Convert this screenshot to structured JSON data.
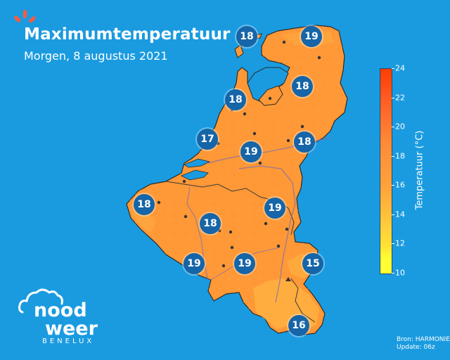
{
  "header": {
    "title": "Maximumtemperatuur",
    "subtitle": "Morgen, 8 augustus 2021"
  },
  "legend": {
    "label": "Temperatuur (°C)",
    "ticks": [
      "10",
      "12",
      "14",
      "16",
      "18",
      "20",
      "22",
      "24"
    ]
  },
  "source": {
    "line1": "Bron: HARMONIE",
    "line2": "Update: 06z"
  },
  "logo": {
    "line1": "nood",
    "line2": "weer",
    "tagline": "BENELUX"
  },
  "markers": [
    {
      "value": "18",
      "loc": "texel"
    },
    {
      "value": "19",
      "loc": "groningen"
    },
    {
      "value": "18",
      "loc": "ijsselmeer-ne"
    },
    {
      "value": "18",
      "loc": "noord-holland"
    },
    {
      "value": "17",
      "loc": "zeeland-north"
    },
    {
      "value": "19",
      "loc": "utrecht-south"
    },
    {
      "value": "18",
      "loc": "achterhoek"
    },
    {
      "value": "18",
      "loc": "belgian-coast"
    },
    {
      "value": "19",
      "loc": "limburg-nl"
    },
    {
      "value": "18",
      "loc": "flanders"
    },
    {
      "value": "19",
      "loc": "hainaut"
    },
    {
      "value": "19",
      "loc": "namur"
    },
    {
      "value": "15",
      "loc": "ardennes-east"
    },
    {
      "value": "16",
      "loc": "luxembourg"
    }
  ],
  "colors": {
    "background": "#1a9be0",
    "land": "#ff9836",
    "land_warm": "#ff8a2e",
    "land_cool": "#ffb040",
    "marker": "#1565a8"
  }
}
